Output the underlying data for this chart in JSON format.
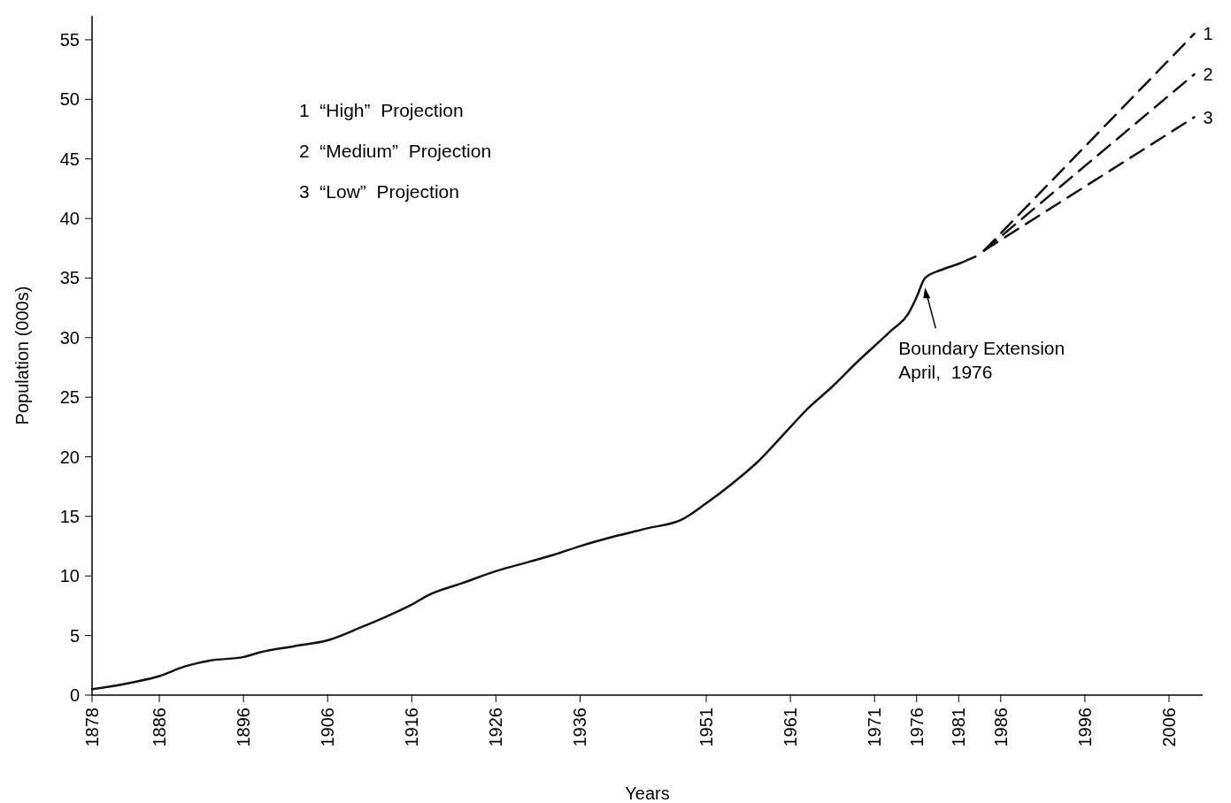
{
  "chart_data": {
    "type": "line",
    "xlabel": "Years",
    "ylabel": "Population  (000s)",
    "xlim": [
      1878,
      2010
    ],
    "ylim": [
      0,
      57
    ],
    "xticks": [
      1878,
      1886,
      1896,
      1906,
      1916,
      1926,
      1936,
      1951,
      1961,
      1971,
      1976,
      1981,
      1986,
      1996,
      2006
    ],
    "yticks": [
      0,
      5,
      10,
      15,
      20,
      25,
      30,
      35,
      40,
      45,
      50,
      55
    ],
    "grid": false,
    "series": [
      {
        "color": "#111111",
        "line_style": "solid",
        "x": [
          1878,
          1880,
          1883,
          1886,
          1889,
          1892,
          1896,
          1898,
          1902,
          1906,
          1910,
          1913,
          1916,
          1918,
          1922,
          1926,
          1930,
          1933,
          1936,
          1940,
          1944,
          1948,
          1951,
          1954,
          1957,
          1961,
          1963,
          1966,
          1969,
          1971,
          1973,
          1975,
          1976,
          1977,
          1979,
          1981,
          1983
        ],
        "values": [
          0.5,
          0.7,
          1.1,
          1.6,
          2.4,
          2.9,
          3.2,
          3.6,
          4.1,
          4.6,
          5.7,
          6.6,
          7.6,
          8.4,
          9.4,
          10.4,
          11.2,
          11.8,
          12.5,
          13.3,
          14,
          14.7,
          16.1,
          17.7,
          19.5,
          22.5,
          24,
          25.9,
          28,
          29.3,
          30.6,
          32,
          33.4,
          35,
          35.7,
          36.2,
          36.8
        ]
      },
      {
        "name": "1",
        "color": "#111111",
        "line_style": "dashed",
        "x": [
          1984,
          2009
        ],
        "values": [
          37.3,
          55.5
        ]
      },
      {
        "name": "2",
        "color": "#111111",
        "line_style": "dashed",
        "x": [
          1984,
          2009
        ],
        "values": [
          37.3,
          52.1
        ]
      },
      {
        "name": "3",
        "color": "#111111",
        "line_style": "dashed",
        "x": [
          1984,
          2009
        ],
        "values": [
          37.3,
          48.5
        ]
      }
    ],
    "annotations": [
      "1  “High”  Projection",
      "2  “Medium”  Projection",
      "3  “Low”  Projection",
      {
        "text": "Boundary Extension\nApril,  1976",
        "x": 1977,
        "y": 34.5
      }
    ]
  }
}
